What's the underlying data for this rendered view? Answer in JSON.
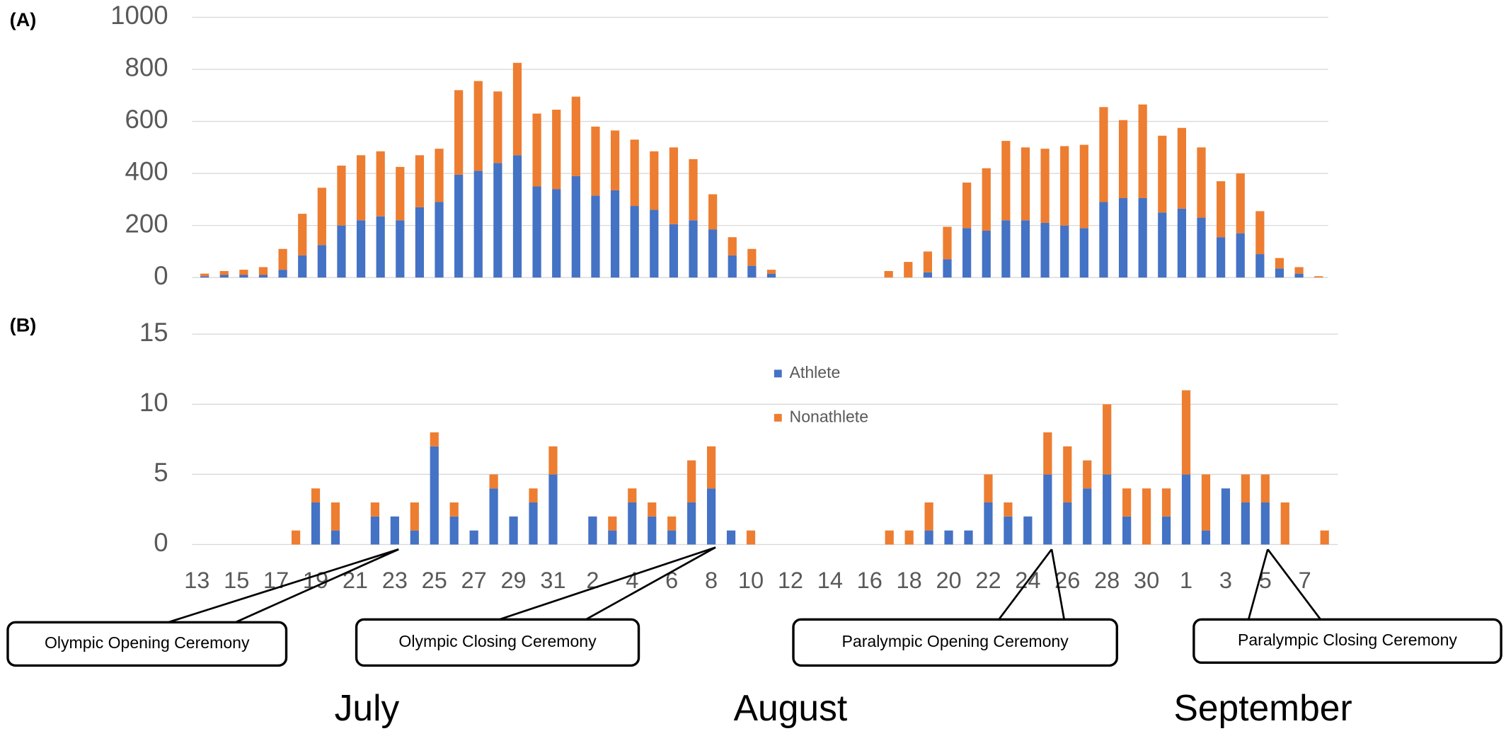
{
  "chart_data": [
    {
      "type": "bar",
      "stacked": true,
      "panel_label": "(A)",
      "series": [
        {
          "color": "#4472c4",
          "values": [
            5,
            10,
            10,
            10,
            30,
            85,
            125,
            200,
            220,
            235,
            220,
            270,
            290,
            395,
            410,
            440,
            470,
            350,
            340,
            390,
            315,
            335,
            275,
            260,
            205,
            220,
            185,
            85,
            45,
            15,
            0,
            0,
            0,
            0,
            0,
            0,
            0,
            20,
            70,
            190,
            180,
            220,
            220,
            210,
            200,
            190,
            290,
            305,
            305,
            250,
            265,
            230,
            155,
            170,
            90,
            35,
            15,
            0
          ]
        },
        {
          "color": "#ed7d31",
          "values": [
            10,
            15,
            20,
            30,
            80,
            160,
            220,
            230,
            250,
            250,
            205,
            200,
            205,
            325,
            345,
            275,
            355,
            280,
            305,
            305,
            265,
            230,
            255,
            225,
            295,
            235,
            135,
            70,
            65,
            15,
            0,
            0,
            0,
            0,
            0,
            25,
            60,
            80,
            125,
            175,
            240,
            305,
            280,
            285,
            305,
            320,
            365,
            300,
            360,
            295,
            310,
            270,
            215,
            230,
            165,
            40,
            25,
            5
          ]
        }
      ],
      "ylim": [
        0,
        1000
      ],
      "yticks": [
        0,
        200,
        400,
        600,
        800,
        1000
      ],
      "grid": true
    },
    {
      "type": "bar",
      "stacked": true,
      "panel_label": "(B)",
      "categories": [
        "13",
        null,
        "15",
        null,
        "17",
        null,
        "19",
        null,
        "21",
        null,
        "23",
        null,
        "25",
        null,
        "27",
        null,
        "29",
        null,
        "31",
        null,
        "2",
        null,
        "4",
        null,
        "6",
        null,
        "8",
        null,
        "10",
        null,
        "12",
        null,
        "14",
        null,
        "16",
        null,
        "18",
        null,
        "20",
        null,
        "22",
        null,
        "24",
        null,
        "26",
        null,
        "28",
        null,
        "30",
        null,
        "1",
        null,
        "3",
        null,
        "5",
        null,
        "7",
        null
      ],
      "series": [
        {
          "name": "Athlete",
          "color": "#4472c4",
          "values": [
            0,
            0,
            0,
            0,
            0,
            0,
            3,
            1,
            0,
            2,
            2,
            1,
            7,
            2,
            1,
            4,
            2,
            3,
            5,
            0,
            2,
            1,
            3,
            2,
            1,
            3,
            4,
            1,
            0,
            0,
            0,
            0,
            0,
            0,
            0,
            0,
            0,
            1,
            1,
            1,
            3,
            2,
            2,
            5,
            3,
            4,
            5,
            2,
            0,
            2,
            5,
            1,
            4,
            3,
            3,
            0,
            0,
            0
          ]
        },
        {
          "name": "Nonathlete",
          "color": "#ed7d31",
          "values": [
            0,
            0,
            0,
            0,
            0,
            1,
            1,
            2,
            0,
            1,
            0,
            2,
            1,
            1,
            0,
            1,
            0,
            1,
            2,
            0,
            0,
            1,
            1,
            1,
            1,
            3,
            3,
            0,
            1,
            0,
            0,
            0,
            0,
            0,
            0,
            1,
            1,
            2,
            0,
            0,
            2,
            1,
            0,
            3,
            4,
            2,
            5,
            2,
            4,
            2,
            6,
            4,
            0,
            2,
            2,
            3,
            0,
            1
          ]
        }
      ],
      "ylim": [
        0,
        15
      ],
      "yticks": [
        0,
        5,
        10,
        15
      ],
      "grid": true,
      "legend": true,
      "annotations": [
        "Olympic Opening Ceremony",
        "Olympic Closing Ceremony",
        "Paralympic Opening Ceremony",
        "Paralympic Closing Ceremony"
      ],
      "month_labels": [
        "July",
        "August",
        "September"
      ]
    }
  ]
}
